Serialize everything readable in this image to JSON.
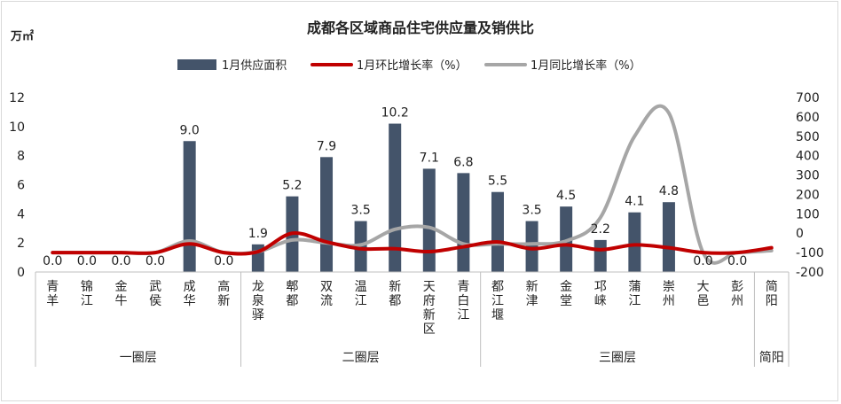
{
  "chart_data": {
    "type": "bar",
    "title": "成都各区域商品住宅供应量及销供比",
    "y_left_unit": "万㎡",
    "y_left_ticks": [
      "0",
      "2",
      "4",
      "6",
      "8",
      "10",
      "12"
    ],
    "y_right_ticks": [
      "-200",
      "-100",
      "0",
      "100",
      "200",
      "300",
      "400",
      "500",
      "600",
      "700"
    ],
    "ylim_left": [
      0,
      12
    ],
    "ylim_right": [
      -200,
      700
    ],
    "legend_position": "top",
    "categories": [
      "青羊",
      "锦江",
      "金牛",
      "武侯",
      "成华",
      "高新",
      "龙泉驿",
      "郫都",
      "双流",
      "温江",
      "新都",
      "天府新区",
      "青白江",
      "都江堰",
      "新津",
      "金堂",
      "邛崃",
      "蒲江",
      "崇州",
      "大邑",
      "彭州",
      "简阳"
    ],
    "groups": [
      {
        "label": "一圈层",
        "start": 0,
        "end": 5
      },
      {
        "label": "二圈层",
        "start": 6,
        "end": 12
      },
      {
        "label": "三圈层",
        "start": 13,
        "end": 20
      },
      {
        "label": "简阳",
        "start": 21,
        "end": 21
      }
    ],
    "series": [
      {
        "name": "1月供应面积",
        "kind": "bar",
        "axis": "left",
        "color": "#44546a",
        "values": [
          0,
          0,
          0,
          0,
          9.0,
          0,
          1.9,
          5.2,
          7.9,
          3.5,
          10.2,
          7.1,
          6.8,
          5.5,
          3.5,
          4.5,
          2.2,
          4.1,
          4.8,
          0,
          0,
          null
        ],
        "labels": [
          "0.0",
          "0.0",
          "0.0",
          "0.0",
          "9.0",
          "0.0",
          "1.9",
          "5.2",
          "7.9",
          "3.5",
          "10.2",
          "7.1",
          "6.8",
          "5.5",
          "3.5",
          "4.5",
          "2.2",
          "4.1",
          "4.8",
          "0.0",
          "0.0",
          ""
        ]
      },
      {
        "name": "1月环比增长率（%）",
        "kind": "line",
        "axis": "right",
        "color": "#c00000",
        "values": [
          -100,
          -100,
          -100,
          -100,
          -55,
          -100,
          -95,
          0,
          -45,
          -80,
          -80,
          -95,
          -70,
          -45,
          -80,
          -60,
          -85,
          -60,
          -75,
          -100,
          -100,
          -75
        ]
      },
      {
        "name": "1月同比增长率（%）",
        "kind": "line",
        "axis": "right",
        "color": "#a6a6a6",
        "values": [
          -100,
          -100,
          -100,
          -100,
          -40,
          -100,
          -95,
          -35,
          -50,
          -60,
          20,
          30,
          -55,
          -55,
          -55,
          -40,
          80,
          500,
          620,
          -100,
          -100,
          -90
        ]
      }
    ]
  }
}
